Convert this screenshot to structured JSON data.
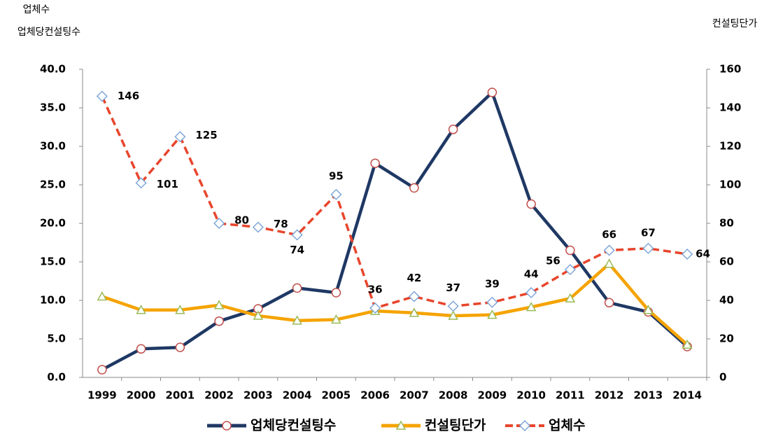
{
  "chart_data": {
    "type": "line",
    "ylabel": [
      "업체수",
      "업체당컨설팅수"
    ],
    "y2label": "컨설팅단가",
    "categories": [
      "1999",
      "2000",
      "2001",
      "2002",
      "2003",
      "2004",
      "2005",
      "2006",
      "2007",
      "2008",
      "2009",
      "2010",
      "2011",
      "2012",
      "2013",
      "2014"
    ],
    "series": [
      {
        "name": "업체당컨설팅수",
        "color": "#1f3864",
        "marker": "circle",
        "marker_color": "#c0504d",
        "values": [
          1.0,
          3.7,
          3.9,
          7.3,
          8.9,
          11.6,
          11.0,
          27.8,
          24.6,
          32.2,
          37.0,
          22.5,
          16.5,
          9.7,
          8.5,
          4.0
        ]
      },
      {
        "name": "컨설팅단가",
        "color": "#f5a300",
        "marker": "triangle",
        "marker_color": "#9bbb59",
        "axis": "y2",
        "values": [
          42,
          35,
          35,
          37.5,
          32,
          29.5,
          30,
          34.5,
          33.5,
          32,
          32.5,
          36.5,
          41,
          59,
          35,
          17
        ]
      },
      {
        "name": "업체수",
        "color": "#e8452c",
        "marker": "diamond",
        "marker_color": "#7ea6d8",
        "axis": "y2",
        "dashed": true,
        "show_labels": true,
        "values": [
          146,
          101,
          125,
          80,
          78,
          74,
          95,
          36,
          42,
          37,
          39,
          44,
          56,
          66,
          67,
          64
        ]
      }
    ],
    "ylim": [
      0,
      40
    ],
    "yticks": [
      {
        "value": 0,
        "label": "0.0"
      },
      {
        "value": 5,
        "label": "5.0"
      },
      {
        "value": 10,
        "label": "10.0"
      },
      {
        "value": 15,
        "label": "15.0"
      },
      {
        "value": 20,
        "label": "20.0"
      },
      {
        "value": 25,
        "label": "25.0"
      },
      {
        "value": 30,
        "label": "30.0"
      },
      {
        "value": 35,
        "label": "35.0"
      },
      {
        "value": 40,
        "label": "40.0"
      }
    ],
    "y2lim": [
      0,
      160
    ],
    "y2ticks": [
      0,
      20,
      40,
      60,
      80,
      100,
      120,
      140,
      160
    ],
    "grid": false,
    "legend": "bottom"
  }
}
